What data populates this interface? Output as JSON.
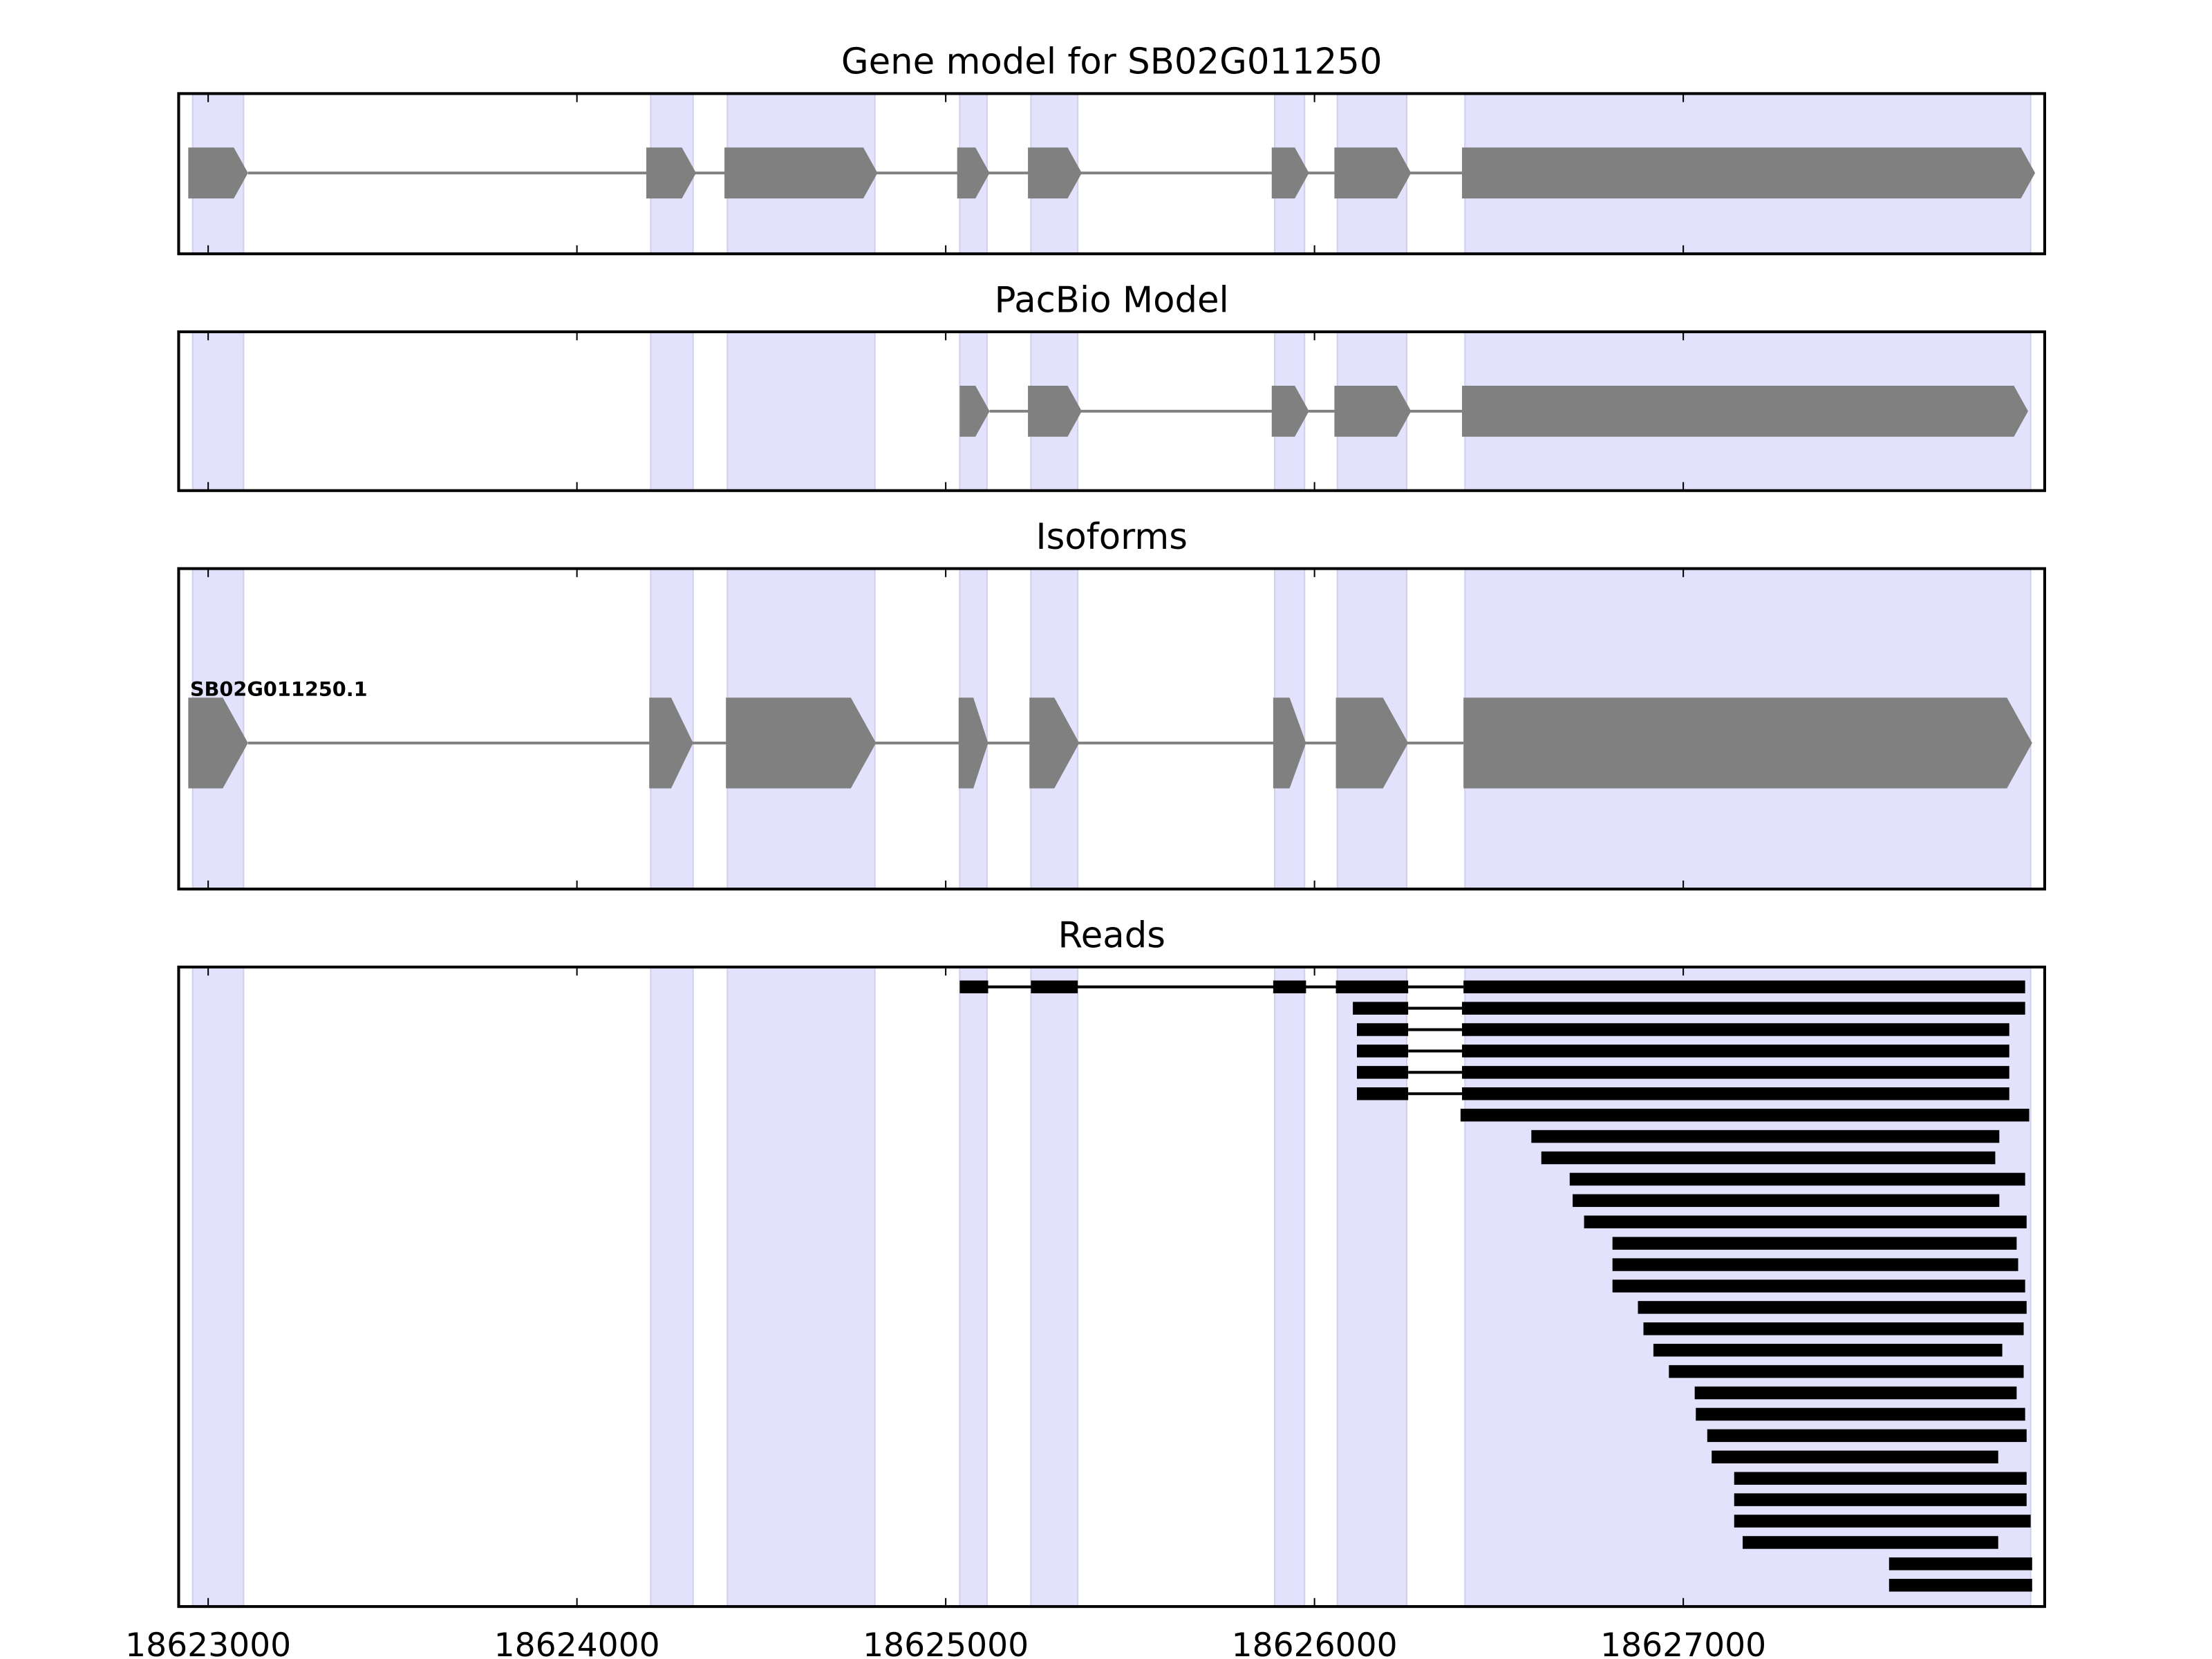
{
  "chart_data": {
    "type": "gene-track",
    "xlim": [
      18622920,
      18627980
    ],
    "xticks": [
      18623000,
      18624000,
      18625000,
      18626000,
      18627000
    ],
    "xtick_labels": [
      "18623000",
      "18624000",
      "18625000",
      "18626000",
      "18627000"
    ],
    "colors": {
      "shade": "#e2e2fc",
      "shade_edge": "#d0d0ee",
      "exon": "#808080",
      "read": "#000000"
    },
    "shaded_exons": [
      [
        18622958,
        18623096
      ],
      [
        18624200,
        18624315
      ],
      [
        18624408,
        18624808
      ],
      [
        18625038,
        18625112
      ],
      [
        18625231,
        18625358
      ],
      [
        18625892,
        18625973
      ],
      [
        18626062,
        18626250
      ],
      [
        18626408,
        18627942
      ]
    ],
    "panels": [
      {
        "title": "Gene model for SB02G011250",
        "kind": "model",
        "exons": [
          [
            18622946,
            18623108
          ],
          [
            18624188,
            18624323
          ],
          [
            18624400,
            18624815
          ],
          [
            18625031,
            18625119
          ],
          [
            18625223,
            18625369
          ],
          [
            18625884,
            18625985
          ],
          [
            18626054,
            18626262
          ],
          [
            18626400,
            18627954
          ]
        ]
      },
      {
        "title": "PacBio Model",
        "kind": "model",
        "exons": [
          [
            18625038,
            18625119
          ],
          [
            18625223,
            18625369
          ],
          [
            18625884,
            18625985
          ],
          [
            18626054,
            18626262
          ],
          [
            18626400,
            18627935
          ]
        ]
      },
      {
        "title": "Isoforms",
        "kind": "model",
        "isoform_label": "SB02G011250.1",
        "exons": [
          [
            18622946,
            18623108
          ],
          [
            18624196,
            18624315
          ],
          [
            18624404,
            18624811
          ],
          [
            18625035,
            18625115
          ],
          [
            18625227,
            18625362
          ],
          [
            18625888,
            18625977
          ],
          [
            18626058,
            18626254
          ],
          [
            18626404,
            18627946
          ]
        ]
      },
      {
        "title": "Reads",
        "kind": "reads",
        "reads": [
          [
            [
              18625038,
              18625115
            ],
            [
              18625231,
              18625358
            ],
            [
              18625888,
              18625977
            ],
            [
              18626058,
              18626254
            ],
            [
              18626404,
              18627927
            ]
          ],
          [
            [
              18626104,
              18626254
            ],
            [
              18626400,
              18627927
            ]
          ],
          [
            [
              18626115,
              18626254
            ],
            [
              18626400,
              18627884
            ]
          ],
          [
            [
              18626115,
              18626254
            ],
            [
              18626400,
              18627884
            ]
          ],
          [
            [
              18626115,
              18626254
            ],
            [
              18626400,
              18627884
            ]
          ],
          [
            [
              18626115,
              18626254
            ],
            [
              18626400,
              18627884
            ]
          ],
          [
            [
              18626396,
              18627938
            ]
          ],
          [
            [
              18626588,
              18627857
            ]
          ],
          [
            [
              18626615,
              18627846
            ]
          ],
          [
            [
              18626692,
              18627927
            ]
          ],
          [
            [
              18626700,
              18627857
            ]
          ],
          [
            [
              18626731,
              18627931
            ]
          ],
          [
            [
              18626808,
              18627904
            ]
          ],
          [
            [
              18626808,
              18627908
            ]
          ],
          [
            [
              18626808,
              18627927
            ]
          ],
          [
            [
              18626877,
              18627931
            ]
          ],
          [
            [
              18626892,
              18627923
            ]
          ],
          [
            [
              18626919,
              18627865
            ]
          ],
          [
            [
              18626961,
              18627923
            ]
          ],
          [
            [
              18627031,
              18627904
            ]
          ],
          [
            [
              18627034,
              18627927
            ]
          ],
          [
            [
              18627065,
              18627931
            ]
          ],
          [
            [
              18627077,
              18627854
            ]
          ],
          [
            [
              18627138,
              18627931
            ]
          ],
          [
            [
              18627138,
              18627931
            ]
          ],
          [
            [
              18627138,
              18627942
            ]
          ],
          [
            [
              18627161,
              18627854
            ]
          ],
          [
            [
              18627558,
              18627946
            ]
          ],
          [
            [
              18627558,
              18627946
            ]
          ]
        ]
      }
    ]
  }
}
